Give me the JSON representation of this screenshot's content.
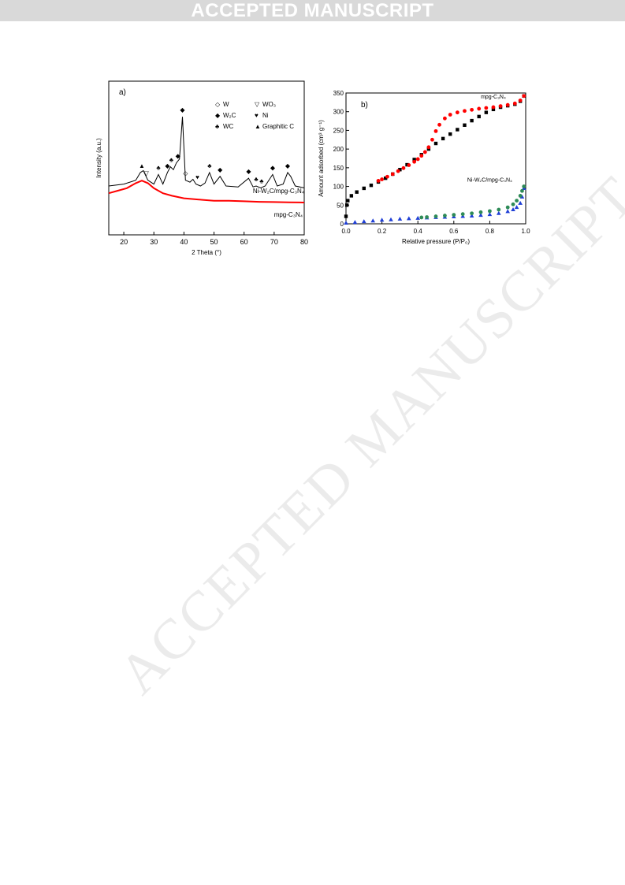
{
  "banner": {
    "text": "ACCEPTED MANUSCRIPT"
  },
  "watermark": {
    "text": "ACCEPTED MANUSCRIPT"
  },
  "figure": {
    "panel_a": {
      "label": "a)"
    },
    "panel_b": {
      "label": "b)"
    }
  },
  "chart_data": [
    {
      "type": "line",
      "panel": "a)",
      "xlabel": "2 Theta (°)",
      "ylabel": "Intensity (a.u.)",
      "xlim": [
        15,
        80
      ],
      "xticks": [
        20,
        30,
        40,
        50,
        60,
        70,
        80
      ],
      "legend": [
        {
          "symbol": "◇",
          "label": "W"
        },
        {
          "symbol": "▽",
          "label": "WO₃"
        },
        {
          "symbol": "◆",
          "label": "W₂C"
        },
        {
          "symbol": "♥",
          "label": "Ni"
        },
        {
          "symbol": "♣",
          "label": "WC"
        },
        {
          "symbol": "▲",
          "label": "Graphitic C"
        }
      ],
      "series": [
        {
          "name": "Ni-W₂C/mpg-C₃N₄",
          "color": "#000000",
          "x": [
            15,
            20,
            24,
            25.5,
            26.5,
            28,
            30,
            31.5,
            33,
            34.5,
            35.5,
            36.5,
            37.5,
            38.5,
            39.5,
            40.5,
            42,
            43,
            44,
            45.5,
            47,
            48.5,
            50,
            52,
            54,
            58,
            61.5,
            63,
            64,
            65.5,
            67,
            69.5,
            71,
            73,
            74.5,
            75.5,
            77,
            80
          ],
          "y": [
            28,
            30,
            34,
            42,
            44,
            34,
            30,
            40,
            30,
            42,
            48,
            45,
            52,
            56,
            100,
            34,
            32,
            35,
            30,
            28,
            31,
            42,
            30,
            38,
            28,
            27,
            36,
            27,
            28,
            26,
            28,
            40,
            28,
            30,
            42,
            38,
            28,
            26
          ]
        },
        {
          "name": "mpg-C₃N₄",
          "color": "#ff0000",
          "x": [
            15,
            18,
            21,
            24,
            26,
            28,
            30,
            33,
            36,
            40,
            45,
            50,
            55,
            60,
            65,
            70,
            75,
            80
          ],
          "y": [
            11,
            12,
            13,
            15,
            16,
            15,
            13,
            11,
            10,
            9,
            8.5,
            8,
            8,
            7.8,
            7.6,
            7.5,
            7.4,
            7.3
          ]
        }
      ],
      "peak_markers": [
        {
          "symbol": "▲",
          "x": 26
        },
        {
          "symbol": "▽",
          "x": 27.5
        },
        {
          "symbol": "♣",
          "x": 31.5
        },
        {
          "symbol": "◆",
          "x": 34.5
        },
        {
          "symbol": "♣",
          "x": 35.8
        },
        {
          "symbol": "◆",
          "x": 38
        },
        {
          "symbol": "◆",
          "x": 39.5
        },
        {
          "symbol": "◇",
          "x": 40.5
        },
        {
          "symbol": "♥",
          "x": 44.5
        },
        {
          "symbol": "♣",
          "x": 48.5
        },
        {
          "symbol": "◆",
          "x": 52
        },
        {
          "symbol": "◆",
          "x": 61.5
        },
        {
          "symbol": "♣",
          "x": 64
        },
        {
          "symbol": "♣",
          "x": 65.8
        },
        {
          "symbol": "◆",
          "x": 69.5
        },
        {
          "symbol": "◆",
          "x": 74.5
        }
      ]
    },
    {
      "type": "scatter",
      "panel": "b)",
      "xlabel": "Relative pressure (P/P₀)",
      "ylabel": "Amount adsorbed (cm³ g⁻¹)",
      "xlim": [
        0,
        1
      ],
      "ylim": [
        0,
        350
      ],
      "xticks": [
        0.0,
        0.2,
        0.4,
        0.6,
        0.8,
        1.0
      ],
      "yticks": [
        0,
        50,
        100,
        150,
        200,
        250,
        300,
        350
      ],
      "annotations": [
        "mpg-C₃N₄",
        "Ni-W₂C/mpg-C₃N₄"
      ],
      "series": [
        {
          "name": "mpg-C₃N₄ adsorption",
          "color": "#000000",
          "marker": "square",
          "x": [
            0.0,
            0.005,
            0.01,
            0.03,
            0.06,
            0.1,
            0.14,
            0.18,
            0.22,
            0.26,
            0.3,
            0.34,
            0.38,
            0.42,
            0.46,
            0.5,
            0.54,
            0.58,
            0.62,
            0.66,
            0.7,
            0.74,
            0.78,
            0.82,
            0.86,
            0.9,
            0.94,
            0.97,
            0.99
          ],
          "y": [
            20,
            50,
            62,
            75,
            85,
            95,
            103,
            112,
            122,
            133,
            145,
            158,
            172,
            185,
            200,
            215,
            228,
            240,
            252,
            264,
            276,
            287,
            298,
            306,
            312,
            316,
            320,
            328,
            342
          ]
        },
        {
          "name": "mpg-C₃N₄ desorption",
          "color": "#ff0000",
          "marker": "circle",
          "x": [
            0.99,
            0.97,
            0.94,
            0.9,
            0.86,
            0.82,
            0.78,
            0.74,
            0.7,
            0.66,
            0.62,
            0.58,
            0.55,
            0.52,
            0.5,
            0.48,
            0.46,
            0.44,
            0.42,
            0.4,
            0.38,
            0.35,
            0.32,
            0.29,
            0.26,
            0.23,
            0.2,
            0.18
          ],
          "y": [
            342,
            330,
            322,
            318,
            315,
            312,
            310,
            308,
            305,
            302,
            298,
            292,
            282,
            265,
            248,
            225,
            205,
            192,
            182,
            173,
            166,
            157,
            149,
            141,
            133,
            126,
            119,
            115
          ]
        },
        {
          "name": "Ni-W₂C/mpg-C₃N₄ adsorption",
          "color": "#1f3fd6",
          "marker": "triangle",
          "x": [
            0.0,
            0.05,
            0.1,
            0.15,
            0.2,
            0.25,
            0.3,
            0.35,
            0.4,
            0.45,
            0.5,
            0.55,
            0.6,
            0.65,
            0.7,
            0.75,
            0.8,
            0.85,
            0.9,
            0.93,
            0.95,
            0.97,
            0.98,
            0.99
          ],
          "y": [
            2,
            4,
            6,
            8,
            10,
            11,
            13,
            14,
            15,
            16,
            17,
            18,
            19,
            20,
            21,
            23,
            25,
            28,
            33,
            38,
            44,
            55,
            72,
            95
          ]
        },
        {
          "name": "Ni-W₂C/mpg-C₃N₄ desorption",
          "color": "#2e8b57",
          "marker": "circle",
          "x": [
            0.99,
            0.98,
            0.97,
            0.95,
            0.93,
            0.9,
            0.85,
            0.8,
            0.75,
            0.7,
            0.65,
            0.6,
            0.55,
            0.5,
            0.45,
            0.42
          ],
          "y": [
            100,
            88,
            75,
            62,
            52,
            44,
            38,
            34,
            31,
            28,
            26,
            24,
            22,
            20,
            18,
            17
          ]
        }
      ]
    }
  ]
}
